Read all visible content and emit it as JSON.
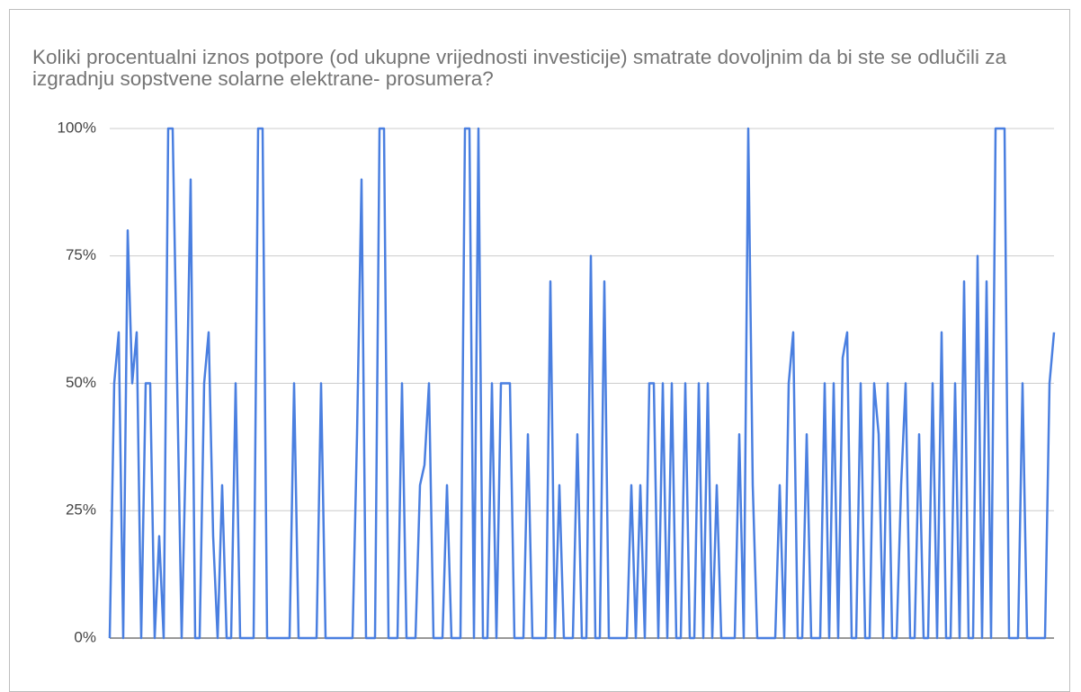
{
  "chart_data": {
    "type": "line",
    "title": "Koliki procentualni iznos potpore (od ukupne vrijednosti investicije) smatrate dovoljnim da bi ste se odlučili za izgradnju sopstvene solarne elektrane- prosumera?",
    "color": "#4a7fe0",
    "values": [
      0,
      50,
      60,
      0,
      80,
      50,
      60,
      0,
      50,
      50,
      0,
      20,
      0,
      100,
      100,
      50,
      0,
      40,
      90,
      0,
      0,
      50,
      60,
      20,
      0,
      30,
      0,
      0,
      50,
      0,
      0,
      0,
      0,
      100,
      100,
      0,
      0,
      0,
      0,
      0,
      0,
      50,
      0,
      0,
      0,
      0,
      0,
      50,
      0,
      0,
      0,
      0,
      0,
      0,
      0,
      40,
      90,
      0,
      0,
      0,
      100,
      100,
      0,
      0,
      0,
      50,
      0,
      0,
      0,
      30,
      34,
      50,
      0,
      0,
      0,
      30,
      0,
      0,
      0,
      100,
      100,
      0,
      100,
      0,
      0,
      50,
      0,
      50,
      50,
      50,
      0,
      0,
      0,
      40,
      0,
      0,
      0,
      0,
      70,
      0,
      30,
      0,
      0,
      0,
      40,
      0,
      0,
      75,
      0,
      0,
      70,
      0,
      0,
      0,
      0,
      0,
      30,
      0,
      30,
      0,
      50,
      50,
      0,
      50,
      0,
      50,
      0,
      0,
      50,
      0,
      0,
      50,
      0,
      50,
      0,
      30,
      0,
      0,
      0,
      0,
      40,
      0,
      100,
      30,
      0,
      0,
      0,
      0,
      0,
      30,
      0,
      50,
      60,
      0,
      0,
      40,
      0,
      0,
      0,
      50,
      0,
      50,
      0,
      55,
      60,
      0,
      0,
      50,
      0,
      0,
      50,
      40,
      0,
      50,
      0,
      0,
      30,
      50,
      0,
      0,
      40,
      0,
      0,
      50,
      0,
      60,
      0,
      0,
      50,
      0,
      70,
      0,
      0,
      75,
      0,
      70,
      0,
      100,
      100,
      100,
      0,
      0,
      0,
      50,
      0,
      0,
      0,
      0,
      0,
      50,
      60
    ],
    "ylim": [
      0,
      100
    ],
    "yticks": [
      {
        "value": 0,
        "label": "0%"
      },
      {
        "value": 25,
        "label": "25%"
      },
      {
        "value": 50,
        "label": "50%"
      },
      {
        "value": 75,
        "label": "75%"
      },
      {
        "value": 100,
        "label": "100%"
      }
    ],
    "grid": true
  }
}
